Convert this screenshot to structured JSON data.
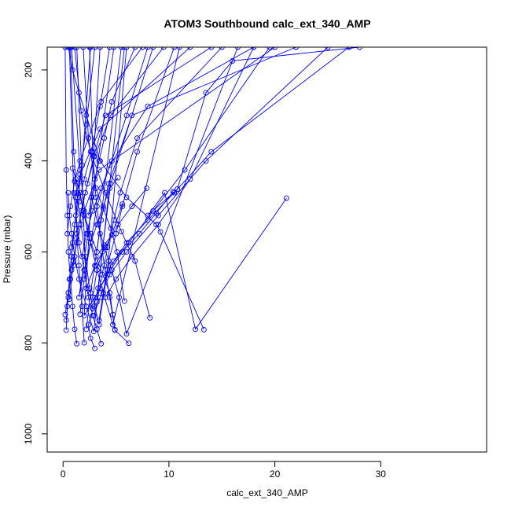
{
  "chart_data": {
    "type": "line",
    "title": "ATOM3 Southbound calc_ext_340_AMP",
    "xlabel": "calc_ext_340_AMP",
    "ylabel": "Pressure (mbar)",
    "xlim": [
      -1.5,
      40
    ],
    "ylim": [
      1040,
      150
    ],
    "y_reversed": true,
    "x_ticks": [
      0,
      10,
      20,
      30
    ],
    "y_ticks": [
      200,
      400,
      600,
      800,
      1000
    ],
    "grid": false,
    "series_color": "#0000ff",
    "series": [
      {
        "x": [
          21.1,
          12.5,
          9.6,
          8.0,
          10.8,
          13.5,
          16.0,
          28.0
        ],
        "y": [
          482,
          770,
          470,
          520,
          462,
          250,
          180,
          150
        ]
      },
      {
        "x": [
          13.3,
          9.2,
          8.8,
          6.0,
          3.5,
          2.2,
          1.5,
          0.9,
          0.5
        ],
        "y": [
          771,
          556,
          540,
          480,
          400,
          300,
          250,
          200,
          150
        ]
      },
      {
        "x": [
          8.2,
          6.8,
          5.5,
          4.0,
          2.6,
          1.7,
          1.1
        ],
        "y": [
          745,
          620,
          555,
          470,
          380,
          290,
          150
        ]
      },
      {
        "x": [
          6.2,
          4.9,
          4.7,
          4.4,
          2.3,
          1.6,
          0.8
        ],
        "y": [
          801,
          772,
          738,
          690,
          560,
          420,
          150
        ]
      },
      {
        "x": [
          5.8,
          5.1,
          4.5,
          3.8,
          3.1,
          2.4,
          1.9
        ],
        "y": [
          708,
          600,
          548,
          505,
          460,
          350,
          150
        ]
      },
      {
        "x": [
          5.6,
          4.6,
          3.9,
          3.2,
          2.8,
          3.4,
          4.2,
          6.0
        ],
        "y": [
          495,
          563,
          585,
          640,
          700,
          760,
          640,
          150
        ]
      },
      {
        "x": [
          3.6,
          3.2,
          2.8,
          2.4,
          2.0,
          1.5,
          1.0,
          0.6
        ],
        "y": [
          802,
          770,
          740,
          700,
          640,
          580,
          470,
          150
        ]
      },
      {
        "x": [
          3.0,
          2.6,
          2.4,
          2.9,
          3.3,
          3.7,
          4.5,
          8.5
        ],
        "y": [
          812,
          790,
          760,
          720,
          680,
          600,
          450,
          150
        ]
      },
      {
        "x": [
          1.3,
          1.1,
          0.9,
          0.7,
          0.5,
          0.4,
          0.3,
          0.2
        ],
        "y": [
          802,
          770,
          720,
          660,
          600,
          520,
          420,
          150
        ]
      },
      {
        "x": [
          0.3,
          0.4,
          0.6,
          0.9,
          1.4,
          2.2,
          3.0
        ],
        "y": [
          772,
          720,
          660,
          580,
          480,
          320,
          150
        ]
      },
      {
        "x": [
          0.2,
          0.5,
          0.8,
          1.2,
          1.8,
          2.6
        ],
        "y": [
          738,
          690,
          610,
          520,
          410,
          150
        ]
      },
      {
        "x": [
          2.8,
          2.5,
          2.1,
          1.7,
          1.3,
          1.0,
          0.7
        ],
        "y": [
          725,
          680,
          610,
          540,
          470,
          380,
          150
        ]
      },
      {
        "x": [
          3.4,
          3.8,
          4.3,
          5.0,
          5.6,
          7.0,
          10.5
        ],
        "y": [
          750,
          690,
          620,
          560,
          500,
          380,
          150
        ]
      },
      {
        "x": [
          4.9,
          4.4,
          3.9,
          3.5,
          3.1,
          2.8,
          2.5
        ],
        "y": [
          771,
          700,
          630,
          560,
          480,
          380,
          150
        ]
      },
      {
        "x": [
          2.0,
          1.8,
          1.5,
          1.3,
          1.2,
          1.6,
          3.5,
          12.0
        ],
        "y": [
          800,
          720,
          630,
          560,
          480,
          430,
          330,
          150
        ]
      },
      {
        "x": [
          0.6,
          1.0,
          1.5,
          2.1,
          2.9,
          4.0,
          14.0
        ],
        "y": [
          704,
          620,
          540,
          470,
          390,
          300,
          150
        ]
      },
      {
        "x": [
          1.6,
          2.0,
          2.6,
          3.2,
          4.4,
          8.0,
          18.0
        ],
        "y": [
          737,
          660,
          580,
          500,
          410,
          280,
          150
        ]
      },
      {
        "x": [
          2.2,
          2.6,
          3.1,
          3.6,
          4.3,
          6.5,
          22.0
        ],
        "y": [
          770,
          690,
          610,
          530,
          450,
          300,
          150
        ]
      },
      {
        "x": [
          3.2,
          3.7,
          4.2,
          4.8,
          5.4,
          7.0,
          15.0
        ],
        "y": [
          710,
          650,
          590,
          530,
          470,
          350,
          150
        ]
      },
      {
        "x": [
          1.0,
          1.3,
          1.7,
          2.3,
          3.0,
          4.5,
          9.5
        ],
        "y": [
          630,
          570,
          510,
          450,
          390,
          300,
          150
        ]
      },
      {
        "x": [
          0.4,
          0.7,
          1.1,
          1.6,
          2.4,
          3.6,
          7.5
        ],
        "y": [
          560,
          500,
          445,
          400,
          350,
          270,
          150
        ]
      },
      {
        "x": [
          0.9,
          1.2,
          1.6,
          2.0,
          2.6,
          3.2,
          5.5
        ],
        "y": [
          416,
          440,
          470,
          520,
          560,
          600,
          150
        ]
      },
      {
        "x": [
          7.9,
          6.5,
          5.2,
          4.0,
          3.0,
          2.2,
          1.3
        ],
        "y": [
          460,
          500,
          540,
          590,
          630,
          680,
          150
        ]
      },
      {
        "x": [
          5.2,
          4.4,
          3.8,
          3.2,
          2.6,
          2.0,
          1.5,
          4.8
        ],
        "y": [
          437,
          460,
          500,
          540,
          580,
          640,
          700,
          150
        ]
      },
      {
        "x": [
          10.4,
          8.8,
          7.2,
          5.6,
          4.2,
          3.0,
          2.0,
          3.5
        ],
        "y": [
          468,
          515,
          560,
          600,
          650,
          700,
          740,
          150
        ]
      },
      {
        "x": [
          0.5,
          0.6,
          0.8,
          1.1,
          1.5,
          2.2,
          2.9,
          5.8
        ],
        "y": [
          470,
          520,
          560,
          610,
          660,
          720,
          775,
          150
        ]
      },
      {
        "x": [
          1.4,
          1.9,
          2.5,
          3.1,
          3.8,
          4.7,
          11.0
        ],
        "y": [
          450,
          510,
          570,
          630,
          690,
          760,
          150
        ]
      },
      {
        "x": [
          2.7,
          3.3,
          3.9,
          4.6,
          5.3,
          6.0,
          16.5
        ],
        "y": [
          480,
          540,
          590,
          640,
          700,
          780,
          150
        ]
      },
      {
        "x": [
          0.3,
          0.5,
          0.8,
          1.3,
          2.0,
          3.4,
          20.0
        ],
        "y": [
          750,
          700,
          640,
          580,
          510,
          420,
          150
        ]
      },
      {
        "x": [
          2.9,
          3.5,
          4.4,
          6.0,
          9.0,
          13.5,
          25.0
        ],
        "y": [
          740,
          700,
          650,
          600,
          520,
          400,
          150
        ]
      },
      {
        "x": [
          4.0,
          5.0,
          6.5,
          9.0,
          12.0,
          18.0
        ],
        "y": [
          700,
          660,
          610,
          540,
          440,
          150
        ]
      },
      {
        "x": [
          3.5,
          4.5,
          6.2,
          8.5,
          11.5,
          19.5
        ],
        "y": [
          680,
          630,
          580,
          510,
          420,
          150
        ]
      },
      {
        "x": [
          4.8,
          6.0,
          8.0,
          10.5,
          14.0,
          27.0
        ],
        "y": [
          620,
          580,
          530,
          470,
          380,
          150
        ]
      },
      {
        "x": [
          1.8,
          2.2,
          2.8,
          3.6,
          4.6,
          6.0,
          8.0
        ],
        "y": [
          610,
          560,
          510,
          460,
          400,
          300,
          150
        ]
      },
      {
        "x": [
          0.8,
          1.1,
          1.5,
          2.0,
          2.7,
          3.5,
          4.4
        ],
        "y": [
          590,
          540,
          490,
          440,
          380,
          280,
          150
        ]
      },
      {
        "x": [
          2.4,
          2.7,
          3.0,
          3.4,
          3.9,
          4.6,
          6.8
        ],
        "y": [
          520,
          480,
          440,
          400,
          350,
          270,
          150
        ]
      }
    ]
  }
}
